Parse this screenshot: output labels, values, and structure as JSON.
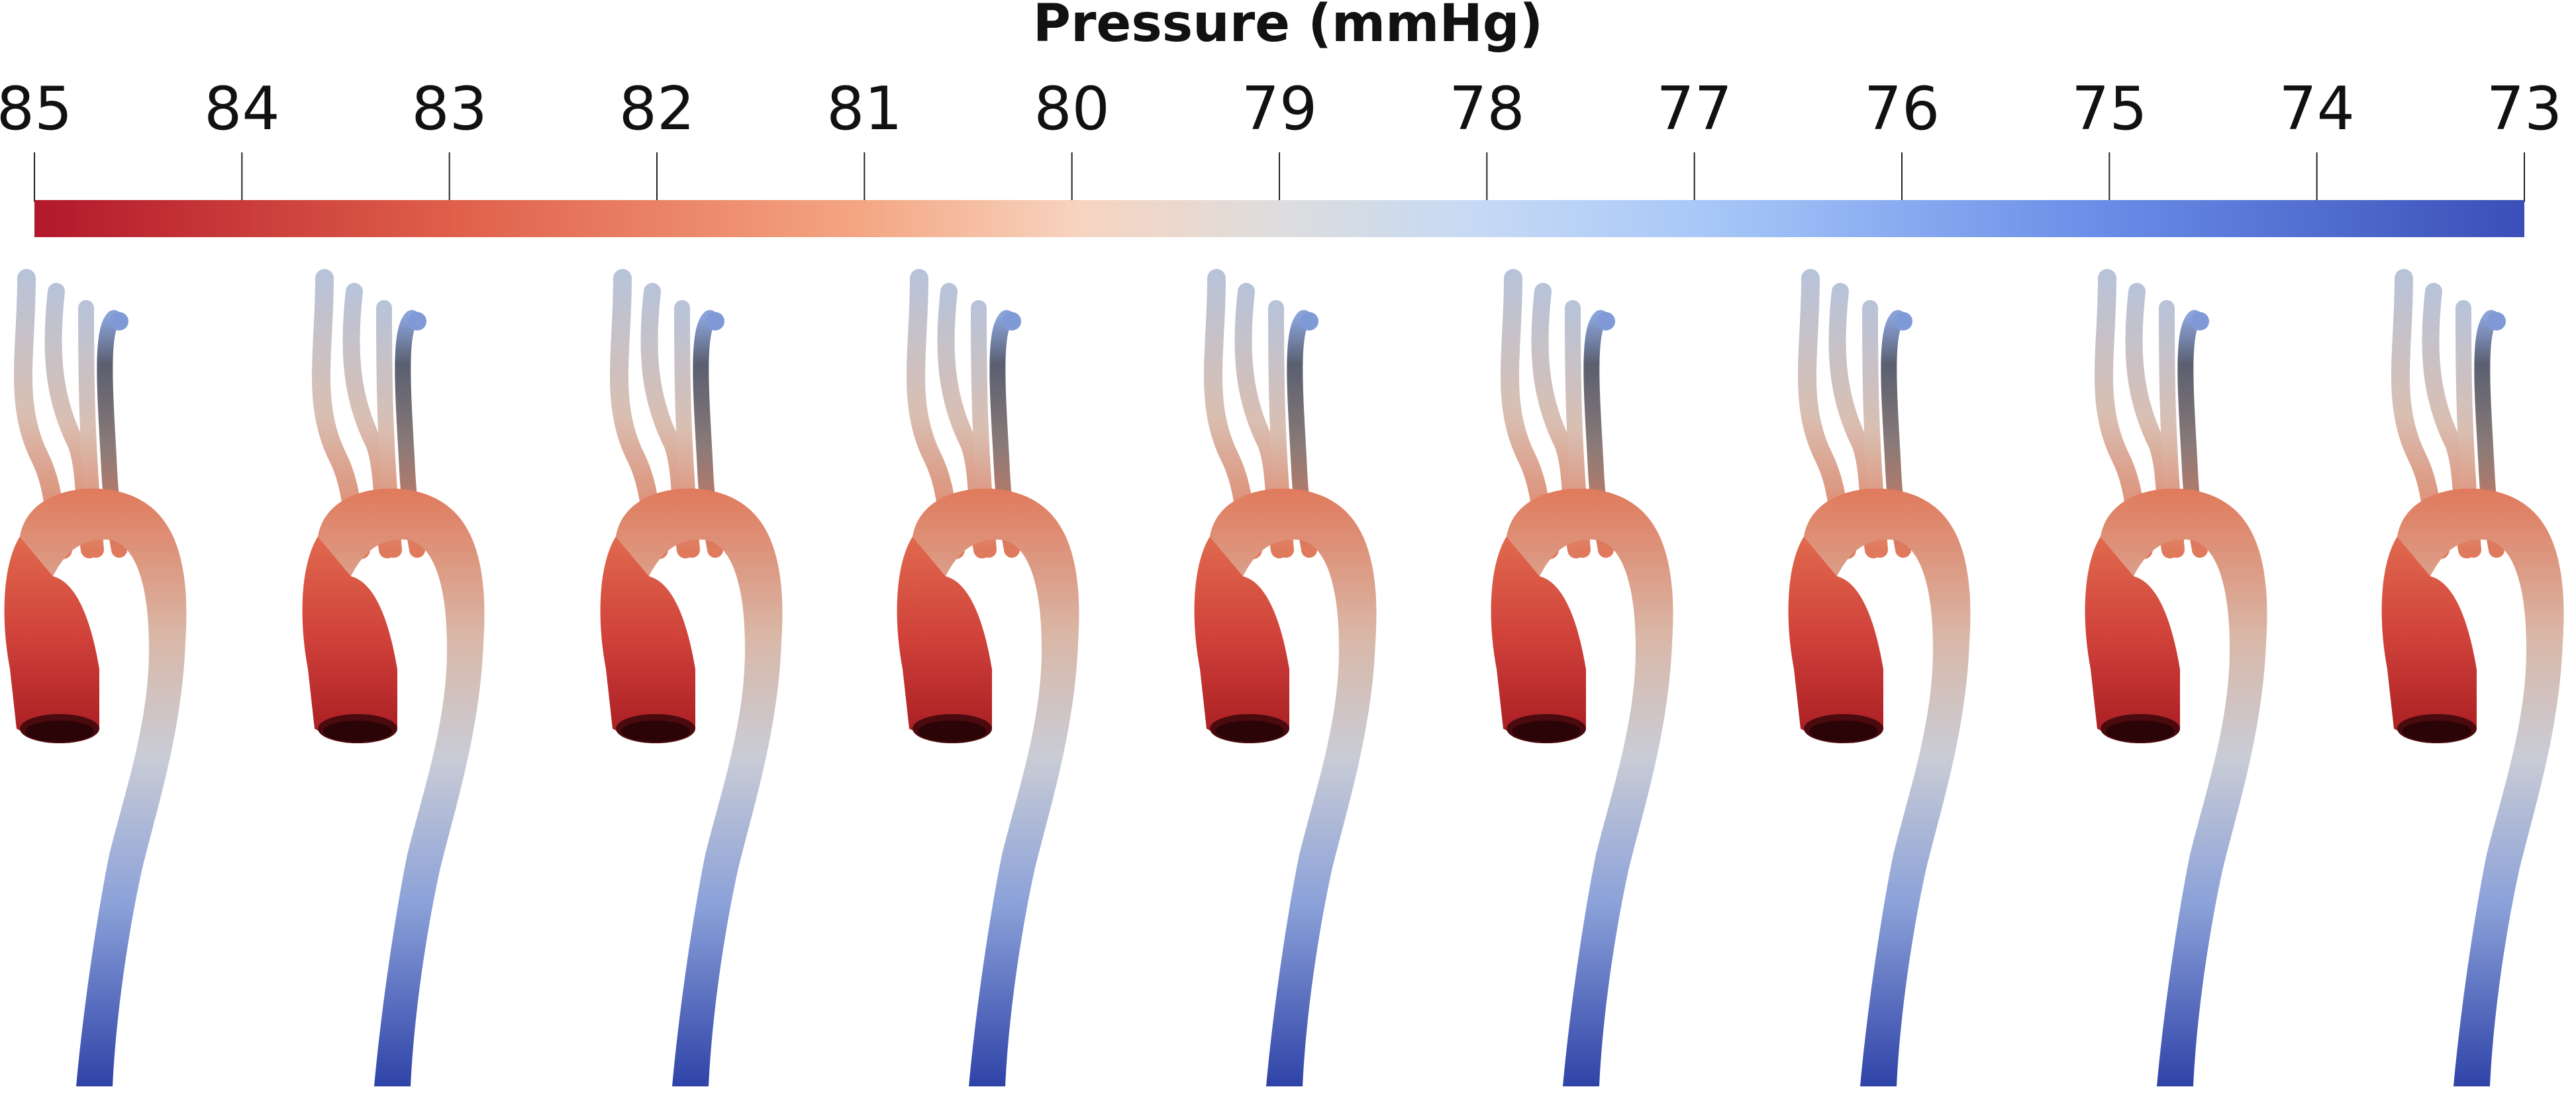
{
  "colorbar": {
    "title": "Pressure (mmHg)",
    "ticks": [
      "85",
      "84",
      "83",
      "82",
      "81",
      "80",
      "79",
      "78",
      "77",
      "76",
      "75",
      "74",
      "73"
    ],
    "tick_values": [
      85,
      84,
      83,
      82,
      81,
      80,
      79,
      78,
      77,
      76,
      75,
      74,
      73
    ],
    "range": [
      85,
      73
    ],
    "colormap": "cool-warm (diverging)",
    "gradient_stops": [
      "#b2182b",
      "#e0604a",
      "#f4a582",
      "#f7d4c0",
      "#dddddd",
      "#c6d9f5",
      "#a8c8f8",
      "#6a8de8",
      "#3a4fb8"
    ]
  },
  "aorta_models": {
    "count": 9,
    "description_colors": {
      "high": "#c0302a",
      "mid": "#d8c8c0",
      "low": "#3a4fb0"
    }
  }
}
